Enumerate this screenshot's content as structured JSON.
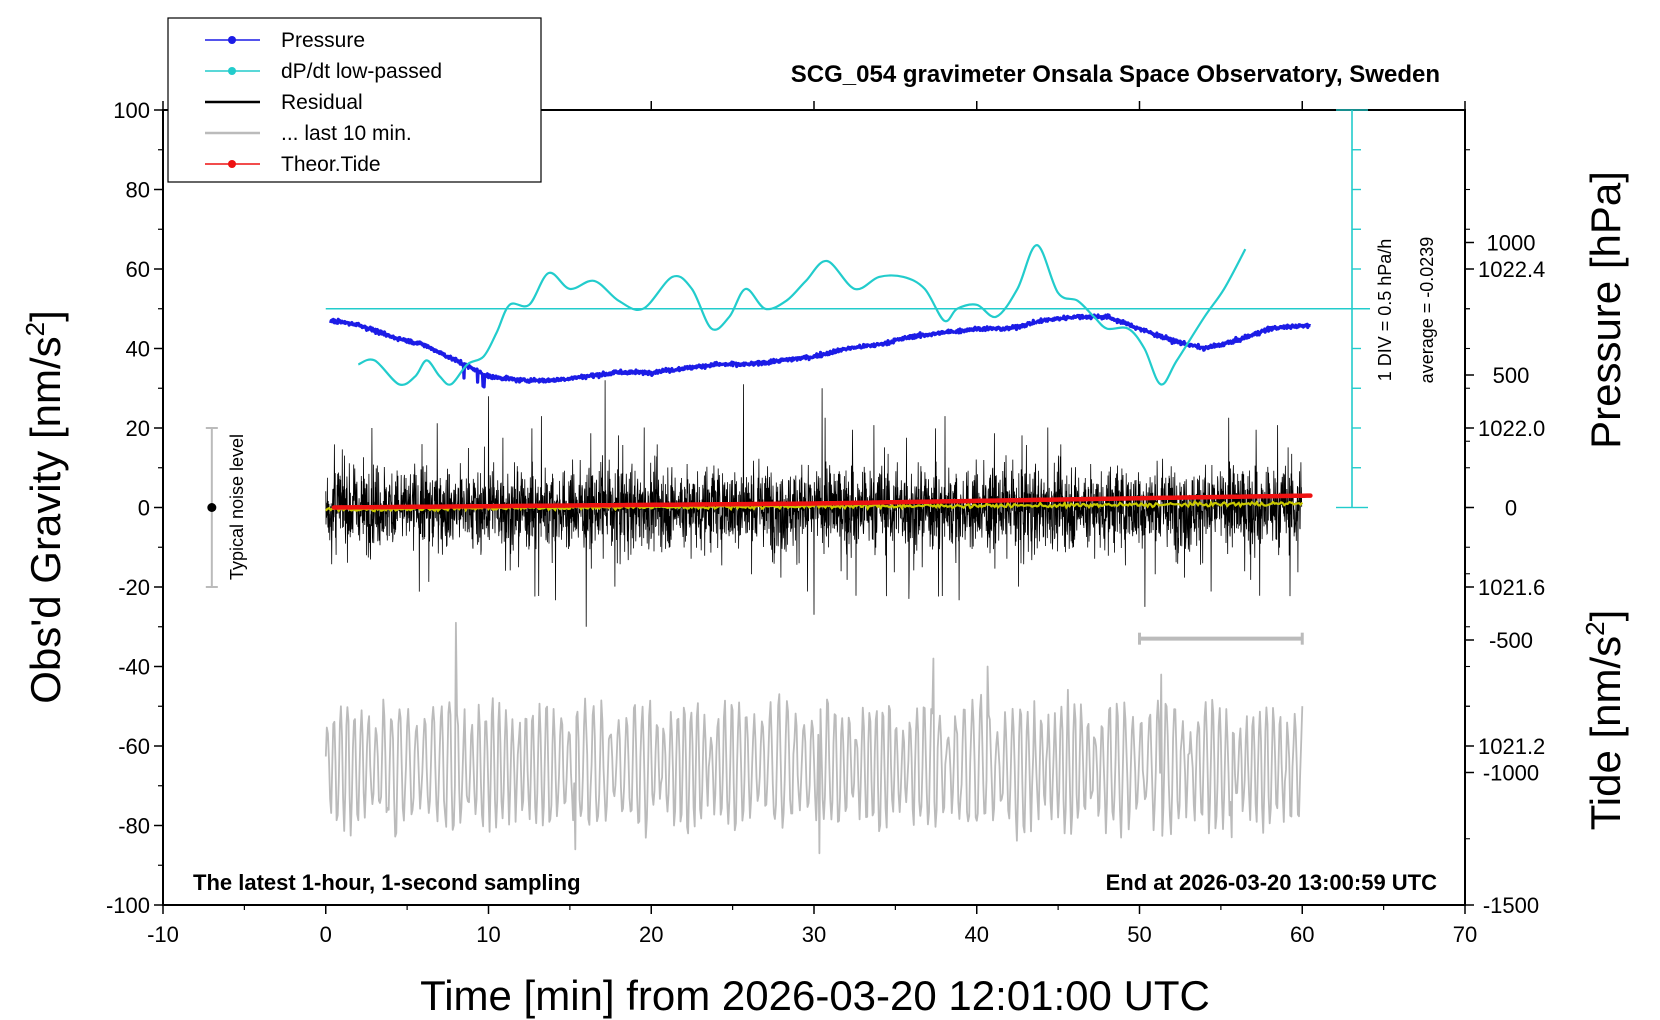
{
  "chart_data": {
    "type": "line",
    "title": "SCG_054 gravimeter Onsala Space Observatory, Sweden",
    "xlabel": "Time [min] from 2026-03-20 12:01:00 UTC",
    "ylabel_left": "Obs'd Gravity [nm/s",
    "ylabel_left_sup": "2",
    "ylabel_left_end": "]",
    "ylabel_right_pressure": "Pressure [hPa]",
    "ylabel_right_tide": "Tide [nm/s",
    "ylabel_right_tide_sup": "2",
    "ylabel_right_tide_end": "]",
    "xlim": [
      -10,
      70
    ],
    "ylim_gravity": [
      -100,
      100
    ],
    "ylim_pressure": [
      1020.8,
      1022.8
    ],
    "ylim_tide": [
      -1500,
      1500
    ],
    "x_ticks": [
      "-10",
      "0",
      "10",
      "20",
      "30",
      "40",
      "50",
      "60",
      "70"
    ],
    "y_ticks_left": [
      "100",
      "80",
      "60",
      "40",
      "20",
      "0",
      "-20",
      "-40",
      "-60",
      "-80",
      "-100"
    ],
    "pressure_ticks": [
      "1022.4",
      "1022.0",
      "1021.6",
      "1021.2"
    ],
    "tide_ticks": [
      "1000",
      "500",
      "0",
      "-500",
      "-1000",
      "-1500"
    ],
    "legend": [
      {
        "label": "Pressure",
        "color": "#1c1ce6",
        "marker": true
      },
      {
        "label": "dP/dt low-passed",
        "color": "#22cccc",
        "marker": true
      },
      {
        "label": "Residual",
        "color": "#000000",
        "marker": false
      },
      {
        "label": "... last 10 min.",
        "color": "#bbbbbb",
        "marker": false
      },
      {
        "label": "Theor.Tide",
        "color": "#ee1111",
        "marker": true
      }
    ],
    "annotations": {
      "bottom_left": "The latest 1-hour, 1-second sampling",
      "bottom_right": "End at 2026-03-20 13:00:59 UTC",
      "noise_label": "Typical noise level",
      "dpdt_scale": "1 DIV = 0.5 hPa/h",
      "dpdt_average": "average = -0.0239"
    },
    "noise_bar": {
      "x": -7,
      "y_center": 0,
      "half_range": 20
    },
    "last10_marker": {
      "x_start": 50,
      "x_end": 60,
      "y": -33
    },
    "colors": {
      "pressure": "#1c1ce6",
      "dpdt": "#22cccc",
      "residual": "#000000",
      "residual_smooth": "#c8c800",
      "last10": "#bbbbbb",
      "tide": "#ee1111",
      "gray_marker": "#bbbbbb"
    },
    "series": [
      {
        "name": "Pressure",
        "axis": "pressure",
        "x": [
          0.3,
          2,
          4,
          6,
          8,
          9,
          10,
          12,
          14,
          16,
          18,
          20,
          22,
          24,
          26,
          28,
          30,
          32,
          34,
          36,
          38,
          40,
          42,
          44,
          46,
          48,
          50,
          52,
          54,
          56,
          58,
          60.5
        ],
        "values": [
          1022.27,
          1022.26,
          1022.23,
          1022.21,
          1022.17,
          1022.15,
          1022.13,
          1022.12,
          1022.12,
          1022.13,
          1022.14,
          1022.14,
          1022.15,
          1022.16,
          1022.16,
          1022.17,
          1022.18,
          1022.2,
          1022.21,
          1022.23,
          1022.24,
          1022.25,
          1022.25,
          1022.27,
          1022.28,
          1022.28,
          1022.25,
          1022.22,
          1022.2,
          1022.22,
          1022.25,
          1022.26
        ]
      },
      {
        "name": "dP/dt low-passed",
        "axis": "dpdt",
        "baseline": 50,
        "x": [
          2,
          3,
          4.5,
          5.5,
          6.2,
          7,
          7.7,
          8.7,
          9.7,
          10.5,
          11.3,
          12.5,
          13.7,
          15,
          16.5,
          18,
          19.5,
          21.3,
          22.5,
          23.7,
          24.8,
          25.8,
          27,
          28.3,
          29.5,
          30.8,
          32.5,
          34,
          35.5,
          36.8,
          38,
          38.8,
          40,
          41.2,
          42.5,
          43.7,
          45,
          46.2,
          47.2,
          48,
          49.3,
          50.3,
          51.3,
          52.3,
          54,
          55.2,
          56.5
        ],
        "values": [
          36,
          37,
          31,
          33,
          37,
          33,
          31,
          36,
          38,
          44,
          51,
          51,
          59,
          55,
          57,
          52,
          50,
          58,
          55,
          45,
          48,
          55,
          50,
          52,
          57,
          62,
          55,
          58,
          58,
          55,
          47,
          50,
          51,
          48,
          55,
          66,
          54,
          52,
          48,
          45,
          45,
          40,
          31,
          37,
          48,
          55,
          65
        ]
      },
      {
        "name": "Residual",
        "axis": "gravity",
        "x_start": 0,
        "x_end": 60,
        "n_points": 3600,
        "typical_amplitude": 10,
        "peak_values": [
          20,
          28,
          32,
          31,
          30,
          -30,
          -27,
          -23,
          -25
        ],
        "smoothed_mean": [
          -0.5,
          0,
          0.3,
          0.5,
          1
        ]
      },
      {
        "name": "... last 10 min.",
        "axis": "gravity",
        "x_start": 0,
        "x_end": 60,
        "baseline": -65,
        "amplitude": 16,
        "peak_values": [
          -29,
          -38,
          -40,
          -42,
          -86,
          -87,
          -83
        ]
      },
      {
        "name": "Theor.Tide",
        "axis": "tide",
        "x": [
          0.5,
          10,
          20,
          30,
          40,
          50,
          60.5
        ],
        "values": [
          0,
          5,
          10,
          15,
          25,
          35,
          45
        ]
      }
    ]
  }
}
